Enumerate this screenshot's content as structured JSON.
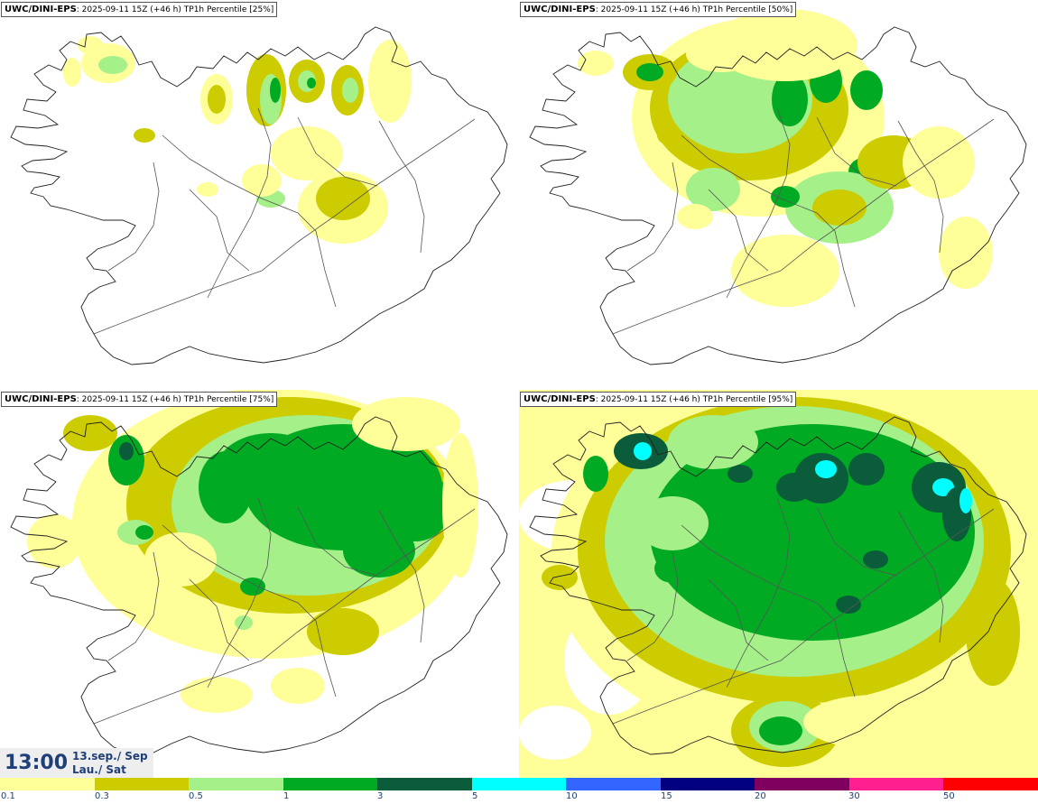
{
  "panels": [
    {
      "model": "UWC/DINI-EPS",
      "run": ": 2025-09-11 15Z (+46 h)",
      "field": "TP1h Percentile [25%]",
      "level": 1
    },
    {
      "model": "UWC/DINI-EPS",
      "run": ": 2025-09-11 15Z (+46 h)",
      "field": "TP1h Percentile [50%]",
      "level": 2
    },
    {
      "model": "UWC/DINI-EPS",
      "run": ": 2025-09-11 15Z (+46 h)",
      "field": "TP1h Percentile [75%]",
      "level": 3
    },
    {
      "model": "UWC/DINI-EPS",
      "run": ": 2025-09-11 15Z (+46 h)",
      "field": "TP1h Percentile [95%]",
      "level": 4
    }
  ],
  "valid_time": {
    "time": "13:00",
    "date": "13.sep./ Sep",
    "day": "Lau./ Sat"
  },
  "legend": {
    "ticks": [
      "0.1",
      "0.3",
      "0.5",
      "1",
      "3",
      "5",
      "10",
      "15",
      "20",
      "30",
      "50"
    ],
    "colors": [
      "#ffff99",
      "#cccc00",
      "#a6f08a",
      "#00aa22",
      "#0a5c3a",
      "#00ffff",
      "#3366ff",
      "#000080",
      "#800060",
      "#ff2090",
      "#ff0000"
    ]
  },
  "map_colors": {
    "coast": "#222222",
    "roads": "#555555"
  }
}
